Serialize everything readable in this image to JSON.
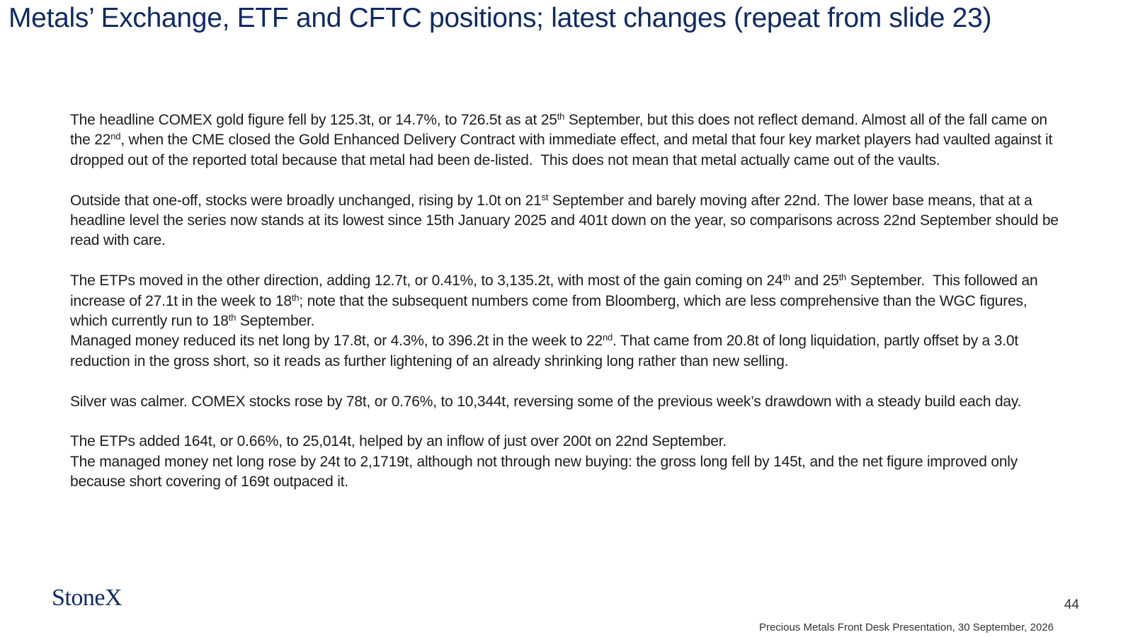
{
  "header": {
    "title": "Metals’ Exchange, ETF and CFTC positions; latest changes (repeat from slide 23)"
  },
  "body": {
    "blocks": [
      [
        [
          {
            "text": "The headline COMEX gold figure fell by 125.3t, or 14.7%, to 726.5t as at 25"
          },
          {
            "sup": "th"
          },
          {
            "text": " September, but this does not reflect demand. Almost all of the fall came on the 22"
          },
          {
            "sup": "nd"
          },
          {
            "text": ", when the CME closed the Gold Enhanced Delivery Contract with immediate effect, and metal that four key market players had vaulted against it dropped out of the reported total because that metal had been de-listed.  This does not mean that metal actually came out of the vaults."
          }
        ]
      ],
      [
        [
          {
            "text": "Outside that one-off, stocks were broadly unchanged, rising by 1.0t on 21"
          },
          {
            "sup": "st"
          },
          {
            "text": " September and barely moving after 22nd. The lower base means, that at a headline level the series now stands at its lowest since 15th January 2025 and 401t down on the year, so comparisons across 22nd September should be read with care."
          }
        ]
      ],
      [
        [
          {
            "text": "The ETPs moved in the other direction, adding 12.7t, or 0.41%, to 3,135.2t, with most of the gain coming on 24"
          },
          {
            "sup": "th"
          },
          {
            "text": " and 25"
          },
          {
            "sup": "th"
          },
          {
            "text": " September.  This followed an increase of 27.1t in the week to 18"
          },
          {
            "sup": "th"
          },
          {
            "text": "; note that the subsequent numbers come from Bloomberg, which are less comprehensive than the WGC figures, which currently run to 18"
          },
          {
            "sup": "th"
          },
          {
            "text": " September."
          }
        ],
        [
          {
            "text": "Managed money reduced its net long by 17.8t, or 4.3%, to 396.2t in the week to 22"
          },
          {
            "sup": "nd"
          },
          {
            "text": ". That came from 20.8t of long liquidation, partly offset by a 3.0t reduction in the gross short, so it reads as further lightening of an already shrinking long rather than new selling."
          }
        ]
      ],
      [
        [
          {
            "text": "Silver was calmer. COMEX stocks rose by 78t, or 0.76%, to 10,344t, reversing some of the previous week’s drawdown with a steady build each day."
          }
        ]
      ],
      [
        [
          {
            "text": "The ETPs added 164t, or 0.66%, to 25,014t, helped by an inflow of just over 200t on 22nd September."
          }
        ],
        [
          {
            "text": "The managed money net long rose by 24t to 2,1719t, although not through new buying: the gross long fell by 145t, and the net figure improved only because short covering of 169t outpaced it."
          }
        ]
      ]
    ]
  },
  "footer": {
    "logo": "StoneX",
    "page_number": "44",
    "caption": "Precious Metals Front Desk Presentation, 30 September, 2026"
  }
}
